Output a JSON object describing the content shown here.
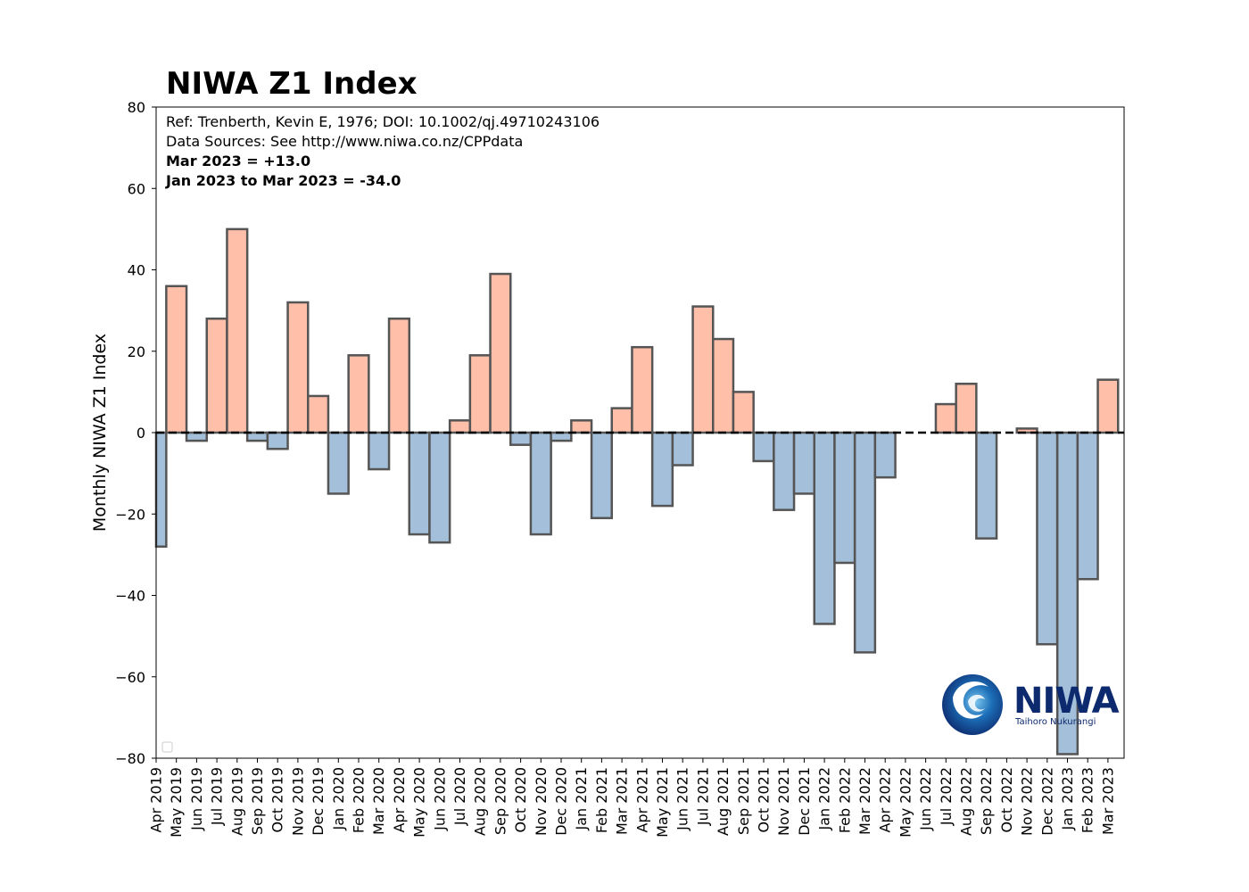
{
  "chart_data": {
    "type": "bar",
    "title": "NIWA Z1 Index",
    "ylabel": "Monthly NIWA Z1 Index",
    "xlabel": "",
    "ylim": [
      -80,
      80
    ],
    "yticks": [
      -80,
      -60,
      -40,
      -20,
      0,
      20,
      40,
      60,
      80
    ],
    "ytick_labels": [
      "−80",
      "−60",
      "−40",
      "−20",
      "0",
      "20",
      "40",
      "60",
      "80"
    ],
    "categories": [
      "Apr 2019",
      "May 2019",
      "Jun 2019",
      "Jul 2019",
      "Aug 2019",
      "Sep 2019",
      "Oct 2019",
      "Nov 2019",
      "Dec 2019",
      "Jan 2020",
      "Feb 2020",
      "Mar 2020",
      "Apr 2020",
      "May 2020",
      "Jun 2020",
      "Jul 2020",
      "Aug 2020",
      "Sep 2020",
      "Oct 2020",
      "Nov 2020",
      "Dec 2020",
      "Jan 2021",
      "Feb 2021",
      "Mar 2021",
      "Apr 2021",
      "May 2021",
      "Jun 2021",
      "Jul 2021",
      "Aug 2021",
      "Sep 2021",
      "Oct 2021",
      "Nov 2021",
      "Dec 2021",
      "Jan 2022",
      "Feb 2022",
      "Mar 2022",
      "Apr 2022",
      "May 2022",
      "Jun 2022",
      "Jul 2022",
      "Aug 2022",
      "Sep 2022",
      "Oct 2022",
      "Nov 2022",
      "Dec 2022",
      "Jan 2023",
      "Feb 2023",
      "Mar 2023"
    ],
    "values": [
      -28,
      36,
      -2,
      28,
      50,
      -2,
      -4,
      32,
      9,
      -15,
      19,
      -9,
      28,
      -25,
      -27,
      3,
      19,
      39,
      -3,
      -25,
      -2,
      3,
      -21,
      6,
      21,
      -18,
      -8,
      31,
      23,
      10,
      -7,
      -19,
      -15,
      -47,
      -32,
      -54,
      -11,
      0,
      0,
      7,
      12,
      -26,
      0,
      1,
      -52,
      -79,
      -36,
      13
    ],
    "annotations": [
      "Ref: Trenberth, Kevin E, 1976; DOI: 10.1002/qj.49710243106",
      "Data Sources: See http://www.niwa.co.nz/CPPdata",
      "Mar 2023 = +13.0",
      "Jan 2023 to Mar 2023 = -34.0"
    ],
    "zero_line": "dashed",
    "legend": "bottom-left (empty)"
  },
  "logo": {
    "name": "NIWA",
    "subtitle": "Taihoro Nukurangi"
  },
  "colors": {
    "positive": "#ffbfa8",
    "negative": "#a3bfd9",
    "bar_edge": "#555555",
    "zero_line": "#000000",
    "logo_blue": "#0d2a6e"
  }
}
